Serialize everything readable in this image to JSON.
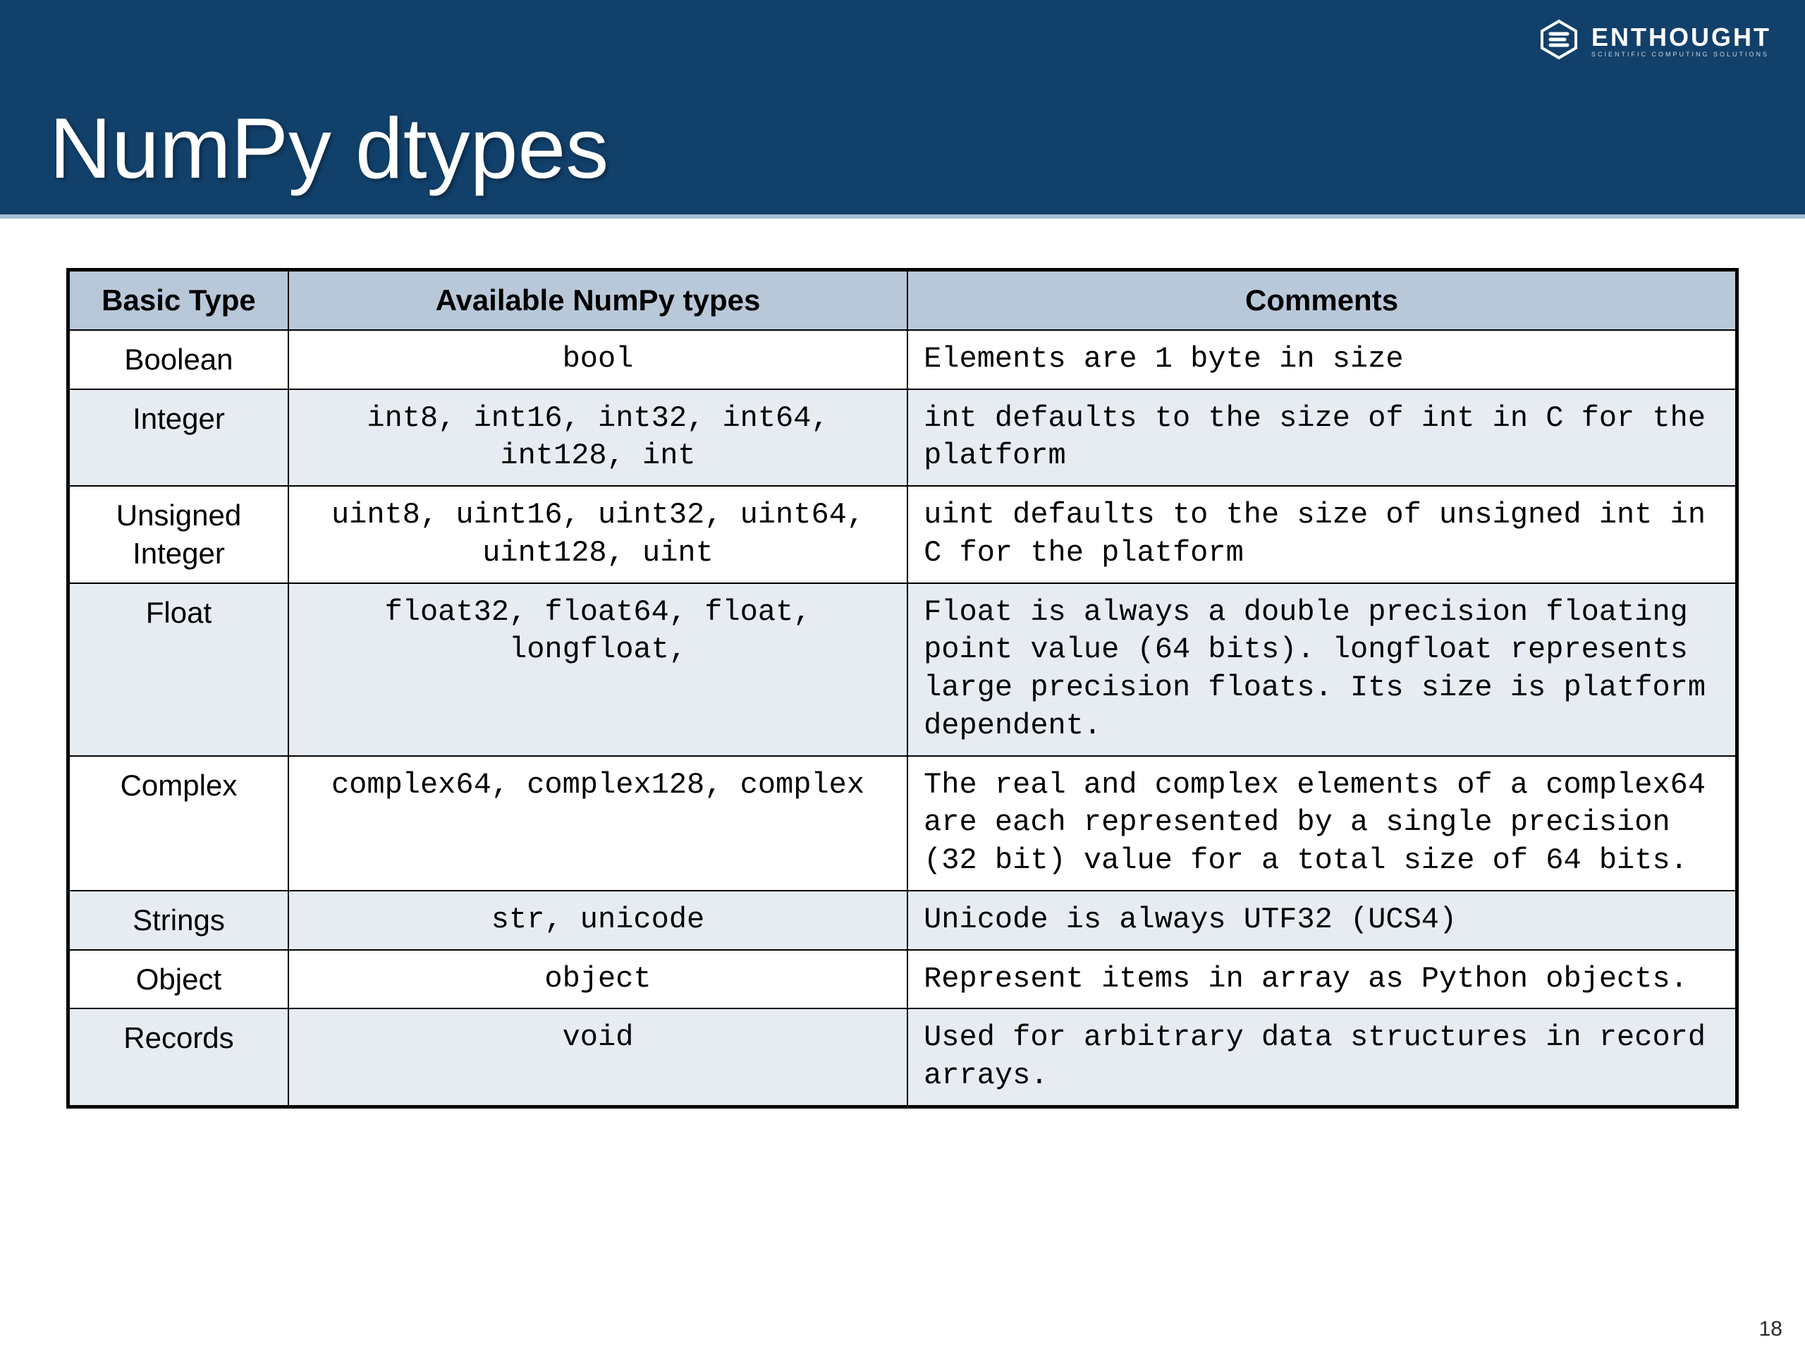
{
  "header": {
    "title": "NumPy dtypes",
    "logo_main": "ENTHOUGHT",
    "logo_sub": "SCIENTIFIC COMPUTING SOLUTIONS",
    "bg_color": "#11406b",
    "border_color": "#a3bdd3"
  },
  "table": {
    "columns": [
      "Basic Type",
      "Available NumPy types",
      "Comments"
    ],
    "header_bg": "#b8c8d9",
    "alt_row_bg": "#e6ecf2",
    "norm_row_bg": "#ffffff",
    "border_color": "#000000",
    "col_widths_pct": [
      13.2,
      37.1,
      49.7
    ],
    "font_size_pt": 42,
    "rows": [
      {
        "basic": "Boolean",
        "types": "bool",
        "comments": "Elements are 1 byte in size",
        "alt": false
      },
      {
        "basic": "Integer",
        "types": "int8, int16, int32, int64, int128, int",
        "comments": "int defaults to the size of int in C for the platform",
        "alt": true
      },
      {
        "basic": "Unsigned Integer",
        "types": "uint8, uint16, uint32, uint64, uint128, uint",
        "comments": "uint defaults to the size of unsigned int in C for the platform",
        "alt": false
      },
      {
        "basic": "Float",
        "types": "float32, float64, float, longfloat,",
        "comments": "Float is always a double precision floating point value (64 bits). longfloat represents large precision floats.  Its size is platform dependent.",
        "alt": true
      },
      {
        "basic": "Complex",
        "types": "complex64, complex128, complex",
        "comments": "The real and complex elements of a complex64 are each represented by a single precision (32 bit) value for a total size of 64 bits.",
        "alt": false
      },
      {
        "basic": "Strings",
        "types": "str, unicode",
        "comments": "Unicode is always UTF32 (UCS4)",
        "alt": true
      },
      {
        "basic": "Object",
        "types": "object",
        "comments": "Represent items in array as Python objects.",
        "alt": false
      },
      {
        "basic": "Records",
        "types": "void",
        "comments": "Used for arbitrary data structures in record arrays.",
        "alt": true
      }
    ]
  },
  "page_number": "18"
}
